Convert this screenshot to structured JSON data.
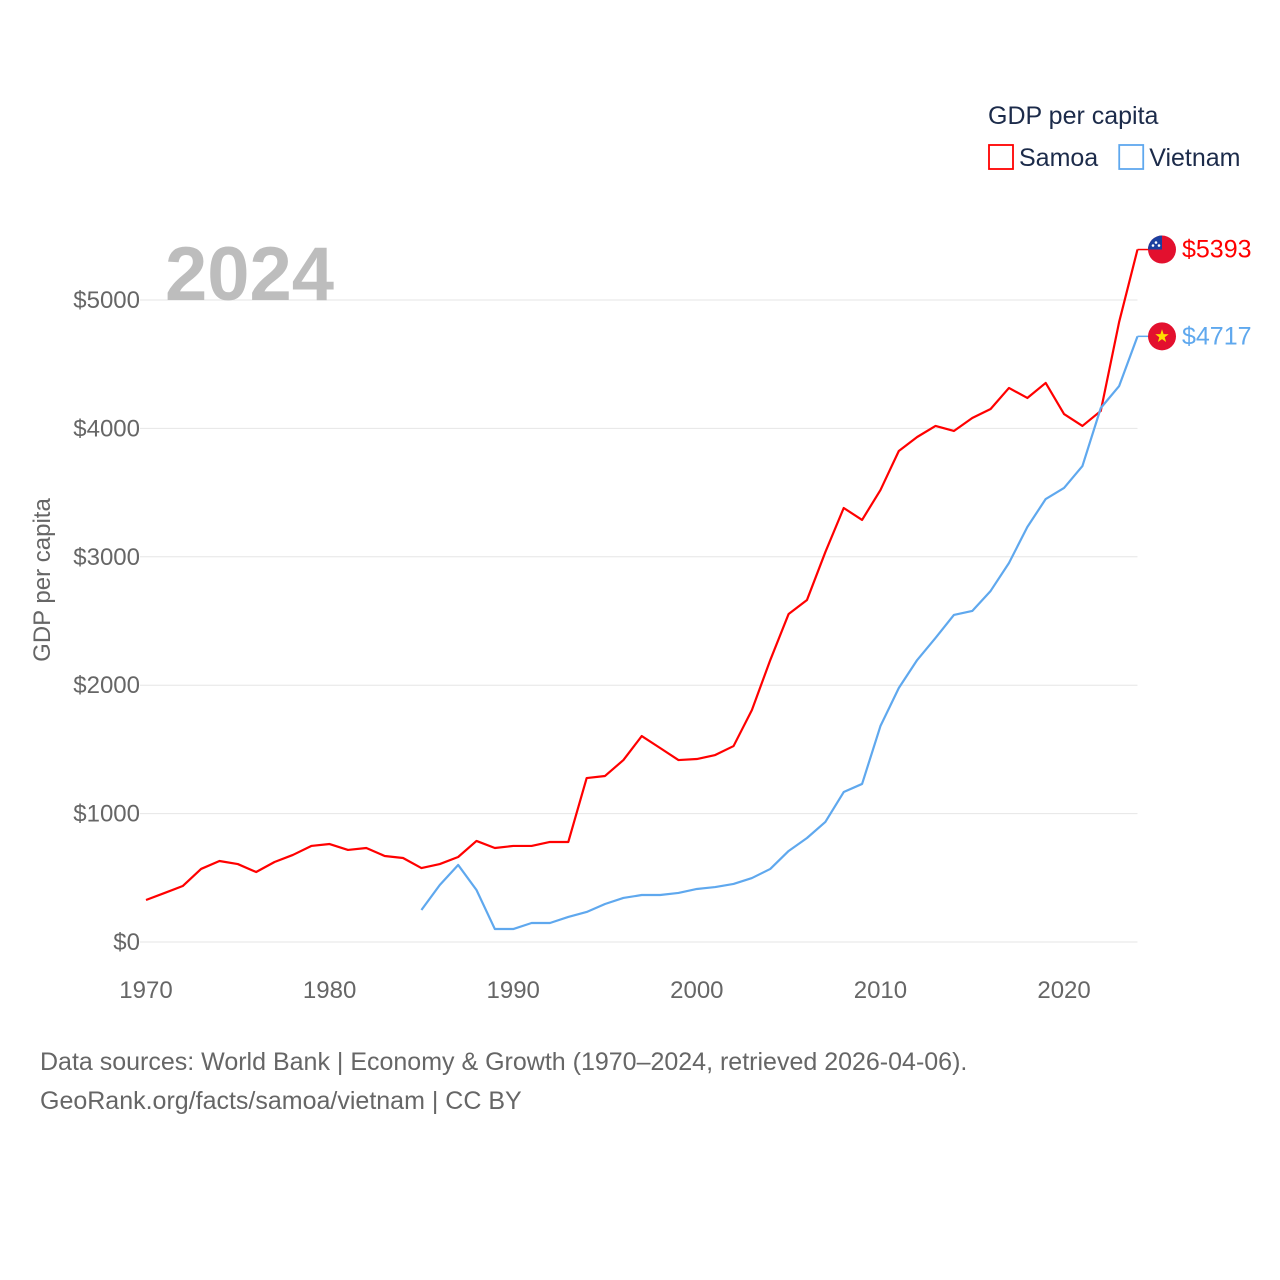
{
  "chart_data": {
    "type": "line",
    "ylabel": "GDP per capita",
    "xlabel": "",
    "year_label": "2024",
    "legend": {
      "title": "GDP per capita",
      "placement": "top-right"
    },
    "xlim": [
      1970,
      2024
    ],
    "ylim": [
      0,
      5400
    ],
    "x_ticks": [
      1970,
      1980,
      1990,
      2000,
      2010,
      2020
    ],
    "y_ticks": [
      0,
      1000,
      2000,
      3000,
      4000,
      5000
    ],
    "y_tick_labels": [
      "$0",
      "$1000",
      "$2000",
      "$3000",
      "$4000",
      "$5000"
    ],
    "grid": true,
    "series": [
      {
        "name": "Samoa",
        "color": "#ff0000",
        "end_label": "$5393",
        "flag": "samoa-flag",
        "start_year": 1970,
        "values": [
          327,
          381,
          436,
          569,
          631,
          607,
          545,
          623,
          678,
          748,
          763,
          717,
          732,
          670,
          654,
          576,
          607,
          662,
          787,
          732,
          748,
          748,
          779,
          779,
          1277,
          1293,
          1417,
          1604,
          1511,
          1417,
          1425,
          1456,
          1526,
          1807,
          2196,
          2555,
          2664,
          3037,
          3380,
          3287,
          3520,
          3824,
          3933,
          4019,
          3980,
          4081,
          4151,
          4315,
          4237,
          4354,
          4112,
          4019,
          4136,
          4829,
          5393
        ]
      },
      {
        "name": "Vietnam",
        "color": "#5fa8ee",
        "end_label": "$4717",
        "flag": "vietnam-flag",
        "start_year": 1985,
        "values": [
          249,
          444,
          600,
          405,
          101,
          101,
          148,
          148,
          195,
          234,
          296,
          343,
          366,
          366,
          382,
          413,
          428,
          452,
          498,
          569,
          709,
          810,
          935,
          1168,
          1231,
          1682,
          1978,
          2196,
          2368,
          2547,
          2578,
          2734,
          2952,
          3232,
          3450,
          3536,
          3707,
          4159,
          4330,
          4717
        ]
      }
    ]
  },
  "footer": {
    "line1": "Data sources: World Bank | Economy & Growth (1970–2024, retrieved 2026-04-06).",
    "line2": "GeoRank.org/facts/samoa/vietnam | CC BY"
  }
}
